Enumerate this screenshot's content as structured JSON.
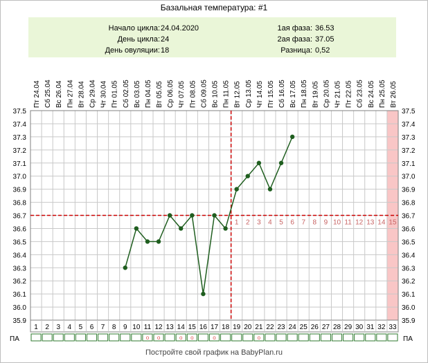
{
  "title": "Базальная температура: #1",
  "info": {
    "cycle_start_label": "Начало цикла:",
    "cycle_start": "24.04.2020",
    "cycle_day_label": "День цикла:",
    "cycle_day": "24",
    "ovulation_day_label": "День овуляции:",
    "ovulation_day": "18",
    "phase1_label": "1ая фаза:",
    "phase1": "36.53",
    "phase2_label": "2ая фаза:",
    "phase2": "37.05",
    "diff_label": "Разница:",
    "diff": "0,52"
  },
  "footer": "Постройте свой график на BabyPlan.ru",
  "colors": {
    "line": "#1f5e1f",
    "marker": "#1f5e1f",
    "coverline": "#cc0000",
    "grid": "#c8c8c8",
    "highlight": "#f9c6c6",
    "luteal_numbers": "#c86464",
    "pa_mark": "#e05050",
    "pa_box": "#2f7a2f"
  },
  "chart_data": {
    "type": "line",
    "xlabel": "",
    "ylabel": "",
    "ylim": [
      35.9,
      37.5
    ],
    "yticks": [
      "35.9",
      "36.0",
      "36.1",
      "36.2",
      "36.3",
      "36.4",
      "36.5",
      "36.6",
      "36.7",
      "36.8",
      "36.9",
      "37.0",
      "37.1",
      "37.2",
      "37.3",
      "37.4",
      "37.5"
    ],
    "days": [
      1,
      2,
      3,
      4,
      5,
      6,
      7,
      8,
      9,
      10,
      11,
      12,
      13,
      14,
      15,
      16,
      17,
      18,
      19,
      20,
      21,
      22,
      23,
      24,
      25,
      26,
      27,
      28,
      29,
      30,
      31,
      32,
      33
    ],
    "dates": [
      "Пт 24.04",
      "Сб 25.04",
      "Вс 26.04",
      "Пн 27.04",
      "Вт 28.04",
      "Ср 29.04",
      "Чт 30.04",
      "Пт 01.05",
      "Сб 02.05",
      "Вс 03.05",
      "Пн 04.05",
      "Вт 05.05",
      "Ср 06.05",
      "Чт 07.05",
      "Пт 08.05",
      "Сб 09.05",
      "Вс 10.05",
      "Пн 11.05",
      "Вт 12.05",
      "Ср 13.05",
      "Чт 14.05",
      "Пт 15.05",
      "Сб 16.05",
      "Вс 17.05",
      "Пн 18.05",
      "Вт 19.05",
      "Ср 20.05",
      "Чт 21.05",
      "Пт 22.05",
      "Сб 23.05",
      "Вс 24.05",
      "Пн 25.05",
      "Вт 26.05"
    ],
    "series": [
      {
        "x": [
          9,
          10,
          11,
          12,
          13,
          14,
          15,
          16,
          17,
          18,
          19,
          20,
          21,
          22,
          23,
          24
        ],
        "values": [
          36.3,
          36.6,
          36.5,
          36.5,
          36.7,
          36.6,
          36.7,
          36.1,
          36.7,
          36.6,
          36.9,
          37.0,
          37.1,
          36.9,
          37.1,
          37.3
        ]
      }
    ],
    "coverline": 36.7,
    "ovulation_day": 18,
    "luteal_numbers": [
      "1",
      "2",
      "3",
      "4",
      "5",
      "6",
      "7",
      "8",
      "9",
      "10",
      "11",
      "12",
      "13",
      "14",
      "15"
    ],
    "highlight_day": 33,
    "pa_label": "ПА",
    "pa_mark": "o",
    "pa_days": [
      11,
      12,
      14,
      15,
      17,
      21
    ]
  }
}
